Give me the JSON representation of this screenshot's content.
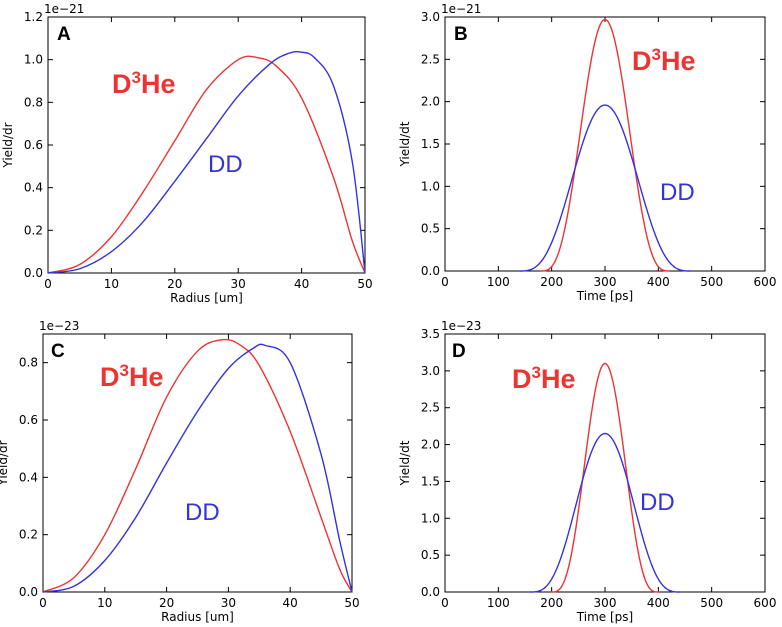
{
  "colors": {
    "d3he": "#ee3333",
    "dd": "#3333dd",
    "axis": "#000000"
  },
  "chart_data": [
    {
      "panel": "A",
      "type": "line",
      "xlabel": "Radius [um]",
      "ylabel": "Yield/dr",
      "multiplier": "1e−21",
      "xlim": [
        0,
        50
      ],
      "ylim": [
        0,
        1.2
      ],
      "xticks": [
        "0",
        "10",
        "20",
        "30",
        "40",
        "50"
      ],
      "yticks": [
        "0.0",
        "0.2",
        "0.4",
        "0.6",
        "0.8",
        "1.0",
        "1.2"
      ],
      "series": [
        {
          "name": "D3He",
          "x": [
            0,
            5,
            10,
            15,
            20,
            25,
            30,
            33,
            36,
            40,
            45,
            48,
            50
          ],
          "values": [
            0,
            0.04,
            0.17,
            0.38,
            0.62,
            0.86,
            1.0,
            1.01,
            0.97,
            0.82,
            0.45,
            0.15,
            0
          ]
        },
        {
          "name": "DD",
          "x": [
            0,
            5,
            10,
            15,
            20,
            25,
            30,
            35,
            38,
            40,
            42,
            45,
            48,
            50
          ],
          "values": [
            0,
            0.02,
            0.1,
            0.24,
            0.43,
            0.63,
            0.83,
            0.98,
            1.03,
            1.035,
            1.01,
            0.88,
            0.52,
            0
          ]
        }
      ],
      "annotations": [
        {
          "series": "D3He",
          "base": "D",
          "sup": "3",
          "rest": "He"
        },
        {
          "series": "DD",
          "text": "DD"
        }
      ]
    },
    {
      "panel": "B",
      "type": "line",
      "xlabel": "Time [ps]",
      "ylabel": "Yield/dt",
      "multiplier": "1e−21",
      "xlim": [
        0,
        600
      ],
      "ylim": [
        0,
        3.0
      ],
      "xticks": [
        "0",
        "100",
        "200",
        "300",
        "400",
        "500",
        "600"
      ],
      "yticks": [
        "0.0",
        "0.5",
        "1.0",
        "1.5",
        "2.0",
        "2.5",
        "3.0"
      ],
      "series": [
        {
          "name": "D3He",
          "peak_x": 300,
          "peak": 2.97,
          "min_x": 180,
          "max_x": 420
        },
        {
          "name": "DD",
          "peak_x": 300,
          "peak": 1.96,
          "min_x": 140,
          "max_x": 460
        }
      ],
      "annotations": [
        {
          "series": "D3He",
          "base": "D",
          "sup": "3",
          "rest": "He"
        },
        {
          "series": "DD",
          "text": "DD"
        }
      ]
    },
    {
      "panel": "C",
      "type": "line",
      "xlabel": "Radius [um]",
      "ylabel": "Yield/dr",
      "multiplier": "1e−23",
      "xlim": [
        0,
        50
      ],
      "ylim": [
        0,
        0.9
      ],
      "xticks": [
        "0",
        "10",
        "20",
        "30",
        "40",
        "50"
      ],
      "yticks": [
        "0.0",
        "0.2",
        "0.4",
        "0.6",
        "0.8"
      ],
      "series": [
        {
          "name": "D3He",
          "x": [
            0,
            5,
            10,
            15,
            20,
            25,
            29,
            32,
            35,
            40,
            45,
            48,
            50
          ],
          "values": [
            0,
            0.05,
            0.2,
            0.43,
            0.68,
            0.84,
            0.88,
            0.86,
            0.79,
            0.56,
            0.26,
            0.08,
            0
          ]
        },
        {
          "name": "DD",
          "x": [
            0,
            5,
            10,
            15,
            20,
            25,
            30,
            34,
            36,
            40,
            45,
            48,
            50
          ],
          "values": [
            0,
            0.02,
            0.11,
            0.26,
            0.45,
            0.63,
            0.78,
            0.85,
            0.86,
            0.8,
            0.48,
            0.18,
            0
          ]
        }
      ],
      "annotations": [
        {
          "series": "D3He",
          "base": "D",
          "sup": "3",
          "rest": "He"
        },
        {
          "series": "DD",
          "text": "DD"
        }
      ]
    },
    {
      "panel": "D",
      "type": "line",
      "xlabel": "Time [ps]",
      "ylabel": "Yield/dt",
      "multiplier": "1e−23",
      "xlim": [
        0,
        600
      ],
      "ylim": [
        0,
        3.5
      ],
      "xticks": [
        "0",
        "100",
        "200",
        "300",
        "400",
        "500",
        "600"
      ],
      "yticks": [
        "0.0",
        "0.5",
        "1.0",
        "1.5",
        "2.0",
        "2.5",
        "3.0",
        "3.5"
      ],
      "series": [
        {
          "name": "D3He",
          "peak_x": 300,
          "peak": 3.1,
          "min_x": 200,
          "max_x": 400
        },
        {
          "name": "DD",
          "peak_x": 300,
          "peak": 2.15,
          "min_x": 160,
          "max_x": 440
        }
      ],
      "annotations": [
        {
          "series": "D3He",
          "base": "D",
          "sup": "3",
          "rest": "He"
        },
        {
          "series": "DD",
          "text": "DD"
        }
      ]
    }
  ]
}
